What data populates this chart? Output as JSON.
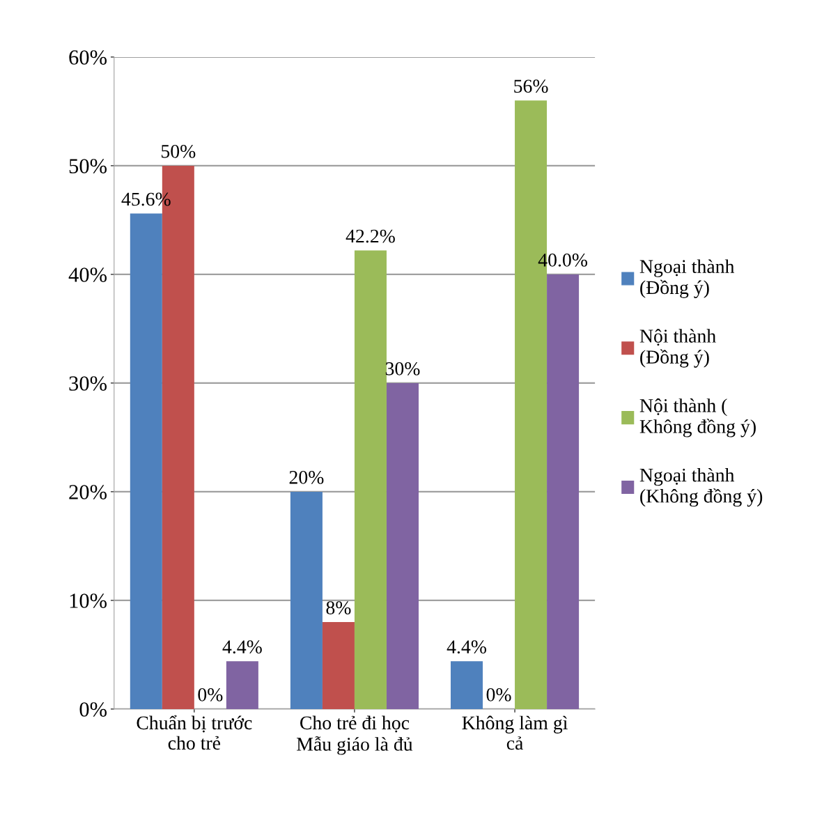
{
  "chart_data": {
    "type": "bar",
    "categories": [
      "Chuẩn bị trước\ncho trẻ",
      "Cho trẻ đi học\nMẫu giáo là đủ",
      "Không làm gì\ncả"
    ],
    "series": [
      {
        "name": "Ngoại thành\n(Đồng ý)",
        "color": "#4f81bd",
        "values": [
          45.6,
          20,
          4.4
        ],
        "value_labels": [
          "45.6%",
          "20%",
          "4.4%"
        ]
      },
      {
        "name": "Nội thành\n(Đồng ý)",
        "color": "#c0504d",
        "values": [
          50,
          8,
          0
        ],
        "value_labels": [
          "50%",
          "8%",
          "0%"
        ]
      },
      {
        "name": "Nội thành (\nKhông đồng ý)",
        "color": "#9bbb59",
        "values": [
          0,
          42.2,
          56
        ],
        "value_labels": [
          "0%",
          "42.2%",
          "56%"
        ]
      },
      {
        "name": "Ngoại thành\n(Không đồng ý)",
        "color": "#8064a2",
        "values": [
          4.4,
          30,
          40.0
        ],
        "value_labels": [
          "4.4%",
          "30%",
          "40.0%"
        ]
      }
    ],
    "ylim": [
      0,
      60
    ],
    "yticks": [
      {
        "value": 0,
        "label": "0%"
      },
      {
        "value": 10,
        "label": "10%"
      },
      {
        "value": 20,
        "label": "20%"
      },
      {
        "value": 30,
        "label": "30%"
      },
      {
        "value": 40,
        "label": "40%"
      },
      {
        "value": 50,
        "label": "50%"
      },
      {
        "value": 60,
        "label": "60%"
      }
    ],
    "grid": "y",
    "legend": "right"
  }
}
